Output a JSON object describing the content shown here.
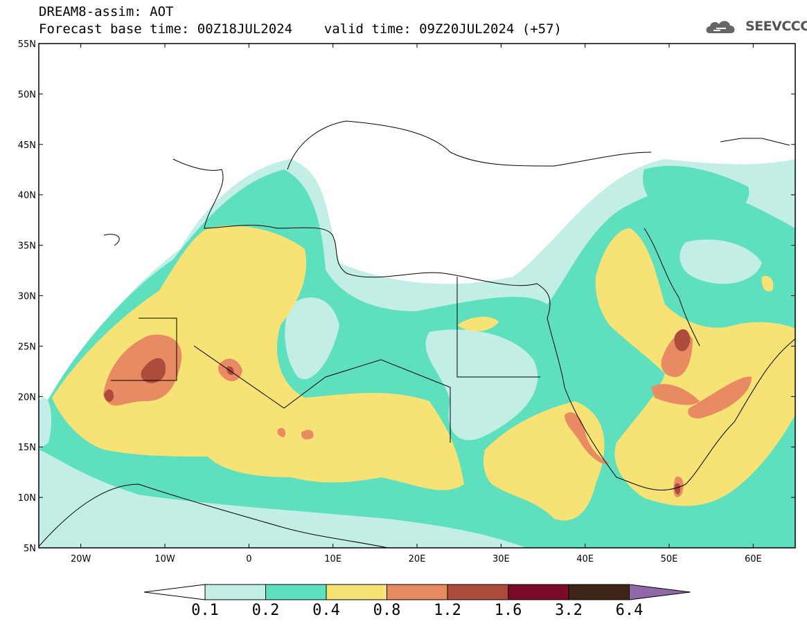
{
  "header": {
    "title_line1": "DREAM8-assim: AOT",
    "title_line2": "Forecast base time: 00Z18JUL2024    valid time: 09Z20JUL2024 (+57)",
    "logo_text": "SEEVCCC",
    "logo_icon": "cloud-icon"
  },
  "map": {
    "projection": "lat-lon",
    "lat_range": [
      5,
      55
    ],
    "lon_range": [
      -25,
      65
    ],
    "lat_ticks": [
      "5N",
      "10N",
      "15N",
      "20N",
      "25N",
      "30N",
      "35N",
      "40N",
      "45N",
      "50N",
      "55N"
    ],
    "lon_ticks": [
      "20W",
      "10W",
      "0",
      "10E",
      "20E",
      "30E",
      "40E",
      "50E",
      "60E"
    ],
    "variable": "AOT"
  },
  "colorbar": {
    "labels": [
      "0.1",
      "0.2",
      "0.4",
      "0.8",
      "1.2",
      "1.6",
      "3.2",
      "6.4"
    ],
    "colors": [
      "#ffffff",
      "#c2eee6",
      "#5ee0bf",
      "#f6e275",
      "#e88a62",
      "#ad4c3c",
      "#7b0a28",
      "#3d2416",
      "#8e68a8"
    ]
  }
}
